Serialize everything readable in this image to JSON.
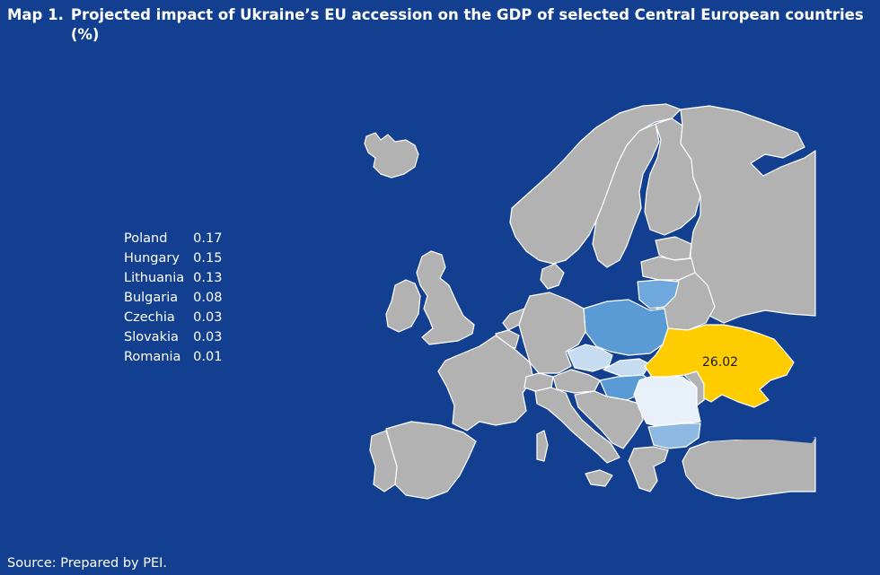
{
  "title": {
    "number": "Map 1.",
    "text": "Projected impact of Ukraine’s EU accession on the GDP of selected Central European countries (%)"
  },
  "legend": [
    {
      "country": "Poland",
      "value": "0.17"
    },
    {
      "country": "Hungary",
      "value": "0.15"
    },
    {
      "country": "Lithuania",
      "value": "0.13"
    },
    {
      "country": "Bulgaria",
      "value": "0.08"
    },
    {
      "country": "Czechia",
      "value": "0.03"
    },
    {
      "country": "Slovakia",
      "value": "0.03"
    },
    {
      "country": "Romania",
      "value": "0.01"
    }
  ],
  "map": {
    "highlight_label": "26.02",
    "colors": {
      "background": "#133f90",
      "land": "#b2b2b2",
      "borders": "#ffffff",
      "ukraine": "#ffcc00",
      "poland": "#5b9bd5",
      "hungary": "#5b9bd5",
      "lithuania": "#6fa8dc",
      "bulgaria": "#8db9e3",
      "czechia": "#c5dcf1",
      "slovakia": "#c5dcf1",
      "romania": "#e8f0f9"
    }
  },
  "source": "Source: Prepared by PEI."
}
